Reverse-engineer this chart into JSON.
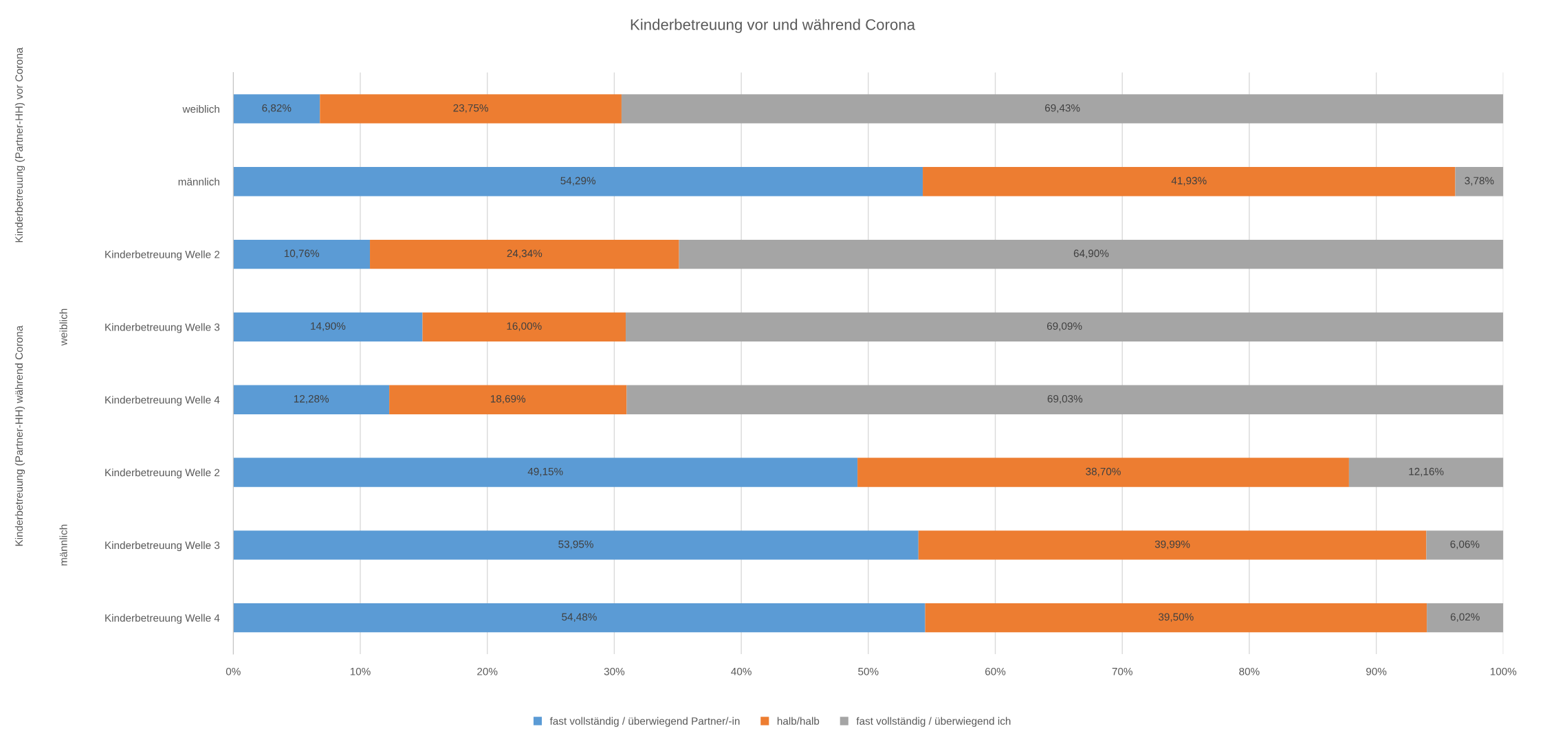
{
  "chart_data": {
    "type": "bar",
    "orientation": "horizontal",
    "stacked": true,
    "title": "Kinderbetreuung vor und während Corona",
    "categories": [
      "weiblich",
      "männlich",
      "Kinderbetreuung Welle 2",
      "Kinderbetreuung Welle 3",
      "Kinderbetreuung Welle 4",
      "Kinderbetreuung Welle 2",
      "Kinderbetreuung Welle 3",
      "Kinderbetreuung Welle 4"
    ],
    "annotations": [
      "Kinderbetreuung (Partner-HH) vor Corona",
      "Kinderbetreuung (Partner-HH) während Corona",
      "weiblich",
      "männlich"
    ],
    "series": [
      {
        "name": "fast vollständig / überwiegend Partner/-in",
        "color": "#5b9bd5",
        "values": [
          6.82,
          54.29,
          10.76,
          14.9,
          12.28,
          49.15,
          53.95,
          54.48
        ],
        "value_labels": [
          "6,82%",
          "54,29%",
          "10,76%",
          "14,90%",
          "12,28%",
          "49,15%",
          "53,95%",
          "54,48%"
        ]
      },
      {
        "name": "halb/halb",
        "color": "#ed7d31",
        "values": [
          23.75,
          41.93,
          24.34,
          16.0,
          18.69,
          38.7,
          39.99,
          39.5
        ],
        "value_labels": [
          "23,75%",
          "41,93%",
          "24,34%",
          "16,00%",
          "18,69%",
          "38,70%",
          "39,99%",
          "39,50%"
        ]
      },
      {
        "name": "fast vollständig / überwiegend ich",
        "color": "#a5a5a5",
        "values": [
          69.43,
          3.78,
          64.9,
          69.09,
          69.03,
          12.16,
          6.06,
          6.02
        ],
        "value_labels": [
          "69,43%",
          "3,78%",
          "64,90%",
          "69,09%",
          "69,03%",
          "12,16%",
          "6,06%",
          "6,02%"
        ]
      }
    ],
    "xlim": [
      0,
      100
    ],
    "xticks": [
      {
        "value": 0,
        "label": "0%"
      },
      {
        "value": 10,
        "label": "10%"
      },
      {
        "value": 20,
        "label": "20%"
      },
      {
        "value": 30,
        "label": "30%"
      },
      {
        "value": 40,
        "label": "40%"
      },
      {
        "value": 50,
        "label": "50%"
      },
      {
        "value": 60,
        "label": "60%"
      },
      {
        "value": 70,
        "label": "70%"
      },
      {
        "value": 80,
        "label": "80%"
      },
      {
        "value": 90,
        "label": "90%"
      },
      {
        "value": 100,
        "label": "100%"
      }
    ],
    "grid": "x",
    "legend": "bottom"
  }
}
